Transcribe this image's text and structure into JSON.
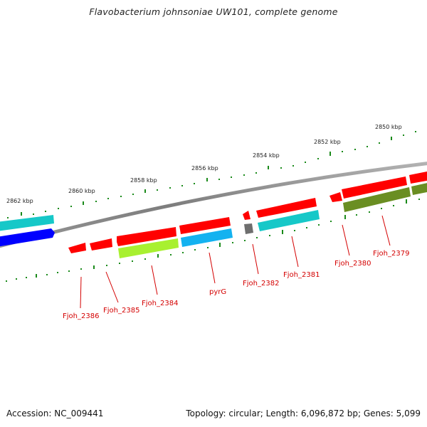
{
  "title": "Flavobacterium johnsoniae UW101, complete genome",
  "accession": "Accession: NC_009441",
  "topology": "Topology: circular; Length: 6,096,872 bp; Genes: 5,099",
  "kbp_labels": [
    "2850 kbp",
    "2852 kbp",
    "2854 kbp",
    "2856 kbp",
    "2858 kbp",
    "2860 kbp",
    "2862 kbp"
  ],
  "gene_labels": [
    "Fjoh_2379",
    "Fjoh_2380",
    "Fjoh_2381",
    "Fjoh_2382",
    "pyrG",
    "Fjoh_2384",
    "Fjoh_2385",
    "Fjoh_2386"
  ],
  "colors": {
    "red": "#ff0000",
    "cyan": "#16c8c8",
    "blue": "#0000ff",
    "sky": "#14b2f0",
    "lime": "#a8f030",
    "olive": "#6a8e22",
    "gray": "#6e6e6e",
    "tick": "#1a8a1a",
    "backbone": "#8c8c8c"
  }
}
